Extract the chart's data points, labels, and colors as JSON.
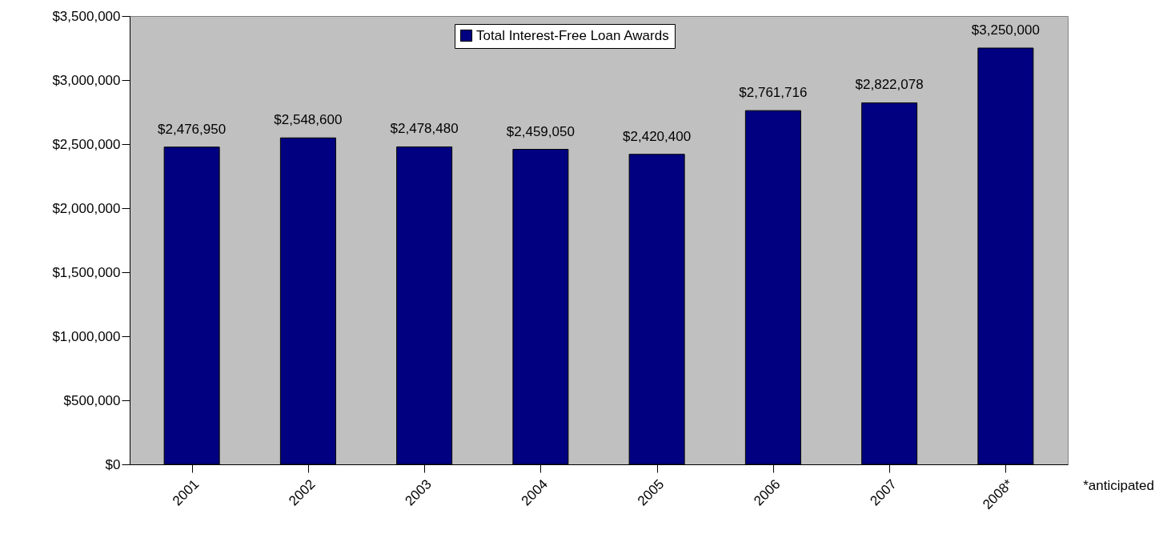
{
  "chart_data": {
    "type": "bar",
    "categories": [
      "2001",
      "2002",
      "2003",
      "2004",
      "2005",
      "2006",
      "2007",
      "2008*"
    ],
    "series": [
      {
        "name": "Total Interest-Free Loan Awards",
        "color": "#000080",
        "values": [
          2476950,
          2548600,
          2478480,
          2459050,
          2420400,
          2761716,
          2822078,
          3250000
        ],
        "value_labels": [
          "$2,476,950",
          "$2,548,600",
          "$2,478,480",
          "$2,459,050",
          "$2,420,400",
          "$2,761,716",
          "$2,822,078",
          "$3,250,000"
        ]
      }
    ],
    "ylim": [
      0,
      3500000
    ],
    "yticks": [
      {
        "value": 0,
        "label": "$0"
      },
      {
        "value": 500000,
        "label": "$500,000"
      },
      {
        "value": 1000000,
        "label": "$1,000,000"
      },
      {
        "value": 1500000,
        "label": "$1,500,000"
      },
      {
        "value": 2000000,
        "label": "$2,000,000"
      },
      {
        "value": 2500000,
        "label": "$2,500,000"
      },
      {
        "value": 3000000,
        "label": "$3,000,000"
      },
      {
        "value": 3500000,
        "label": "$3,500,000"
      }
    ],
    "legend": "top",
    "annotations": [
      "*anticipated"
    ]
  }
}
